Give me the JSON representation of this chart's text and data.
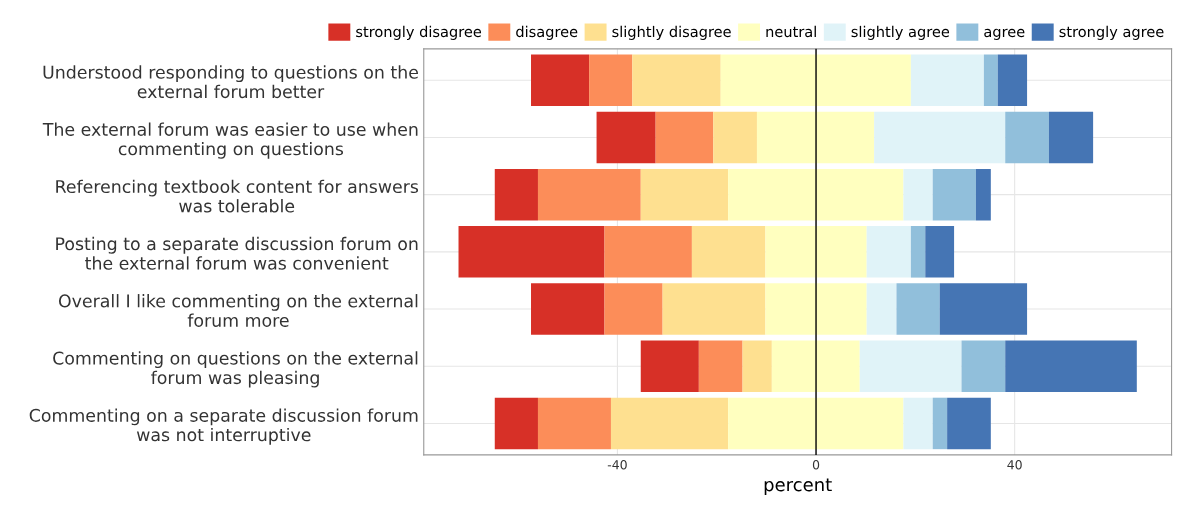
{
  "chart_data": {
    "type": "bar",
    "orientation": "horizontal",
    "xlabel": "percent",
    "categories": [
      "Understood responding to questions on the\nexternal forum better",
      "The external forum was easier to use when\ncommenting on questions",
      "Referencing textbook content for answers\nwas tolerable",
      "Posting to a separate discussion forum on\nthe external forum was convenient",
      "Overall I like commenting on the external\nforum more",
      "Commenting on questions on the external\nforum was pleasing",
      "Commenting on a separate discussion forum\nwas not interruptive"
    ],
    "series": [
      {
        "name": "strongly disagree",
        "color": "#d73027",
        "base": [
          -57.4,
          -44.2,
          -64.7,
          -72.0,
          -57.4,
          -35.3,
          -64.7
        ],
        "values": [
          11.7,
          11.9,
          8.7,
          29.4,
          14.8,
          11.7,
          8.7
        ]
      },
      {
        "name": "disagree",
        "color": "#fc8d59",
        "base": [
          -45.7,
          -32.3,
          -56.0,
          -42.6,
          -42.6,
          -23.6,
          -56.0
        ],
        "values": [
          8.7,
          11.6,
          20.7,
          17.6,
          11.7,
          8.8,
          14.7
        ]
      },
      {
        "name": "slightly disagree",
        "color": "#fee090",
        "base": [
          -37.0,
          -20.7,
          -35.3,
          -25.0,
          -30.9,
          -14.8,
          -41.3
        ],
        "values": [
          17.8,
          8.8,
          17.6,
          14.8,
          20.7,
          5.9,
          23.6
        ]
      },
      {
        "name": "neutral",
        "color": "#ffffbf",
        "base": [
          -19.2,
          -11.9,
          -17.7,
          -10.2,
          -10.2,
          -8.9,
          -17.7
        ],
        "values": [
          38.3,
          23.6,
          35.3,
          20.4,
          20.4,
          17.7,
          35.3
        ]
      },
      {
        "name": "slightly agree",
        "color": "#e0f3f8",
        "base": [
          19.1,
          11.7,
          17.6,
          10.2,
          10.2,
          8.8,
          17.6
        ],
        "values": [
          14.7,
          26.4,
          5.9,
          8.9,
          6.0,
          20.5,
          5.9
        ]
      },
      {
        "name": "agree",
        "color": "#91bfdb",
        "base": [
          33.8,
          38.1,
          23.5,
          19.1,
          16.2,
          29.3,
          23.5
        ],
        "values": [
          2.8,
          8.8,
          8.7,
          2.9,
          8.7,
          8.8,
          2.9
        ]
      },
      {
        "name": "strongly agree",
        "color": "#4575b4",
        "base": [
          36.6,
          46.9,
          32.2,
          22.0,
          24.9,
          38.1,
          26.4
        ],
        "values": [
          5.9,
          8.9,
          3.0,
          5.8,
          17.6,
          26.5,
          8.8
        ]
      }
    ],
    "ref_lines": [
      {
        "axis": "x",
        "value": 0,
        "label": null,
        "color": "#000000"
      }
    ],
    "xlim": [
      -79,
      71.6
    ],
    "xticks": [
      -40,
      0,
      40
    ],
    "grid": true,
    "legend": "top"
  }
}
